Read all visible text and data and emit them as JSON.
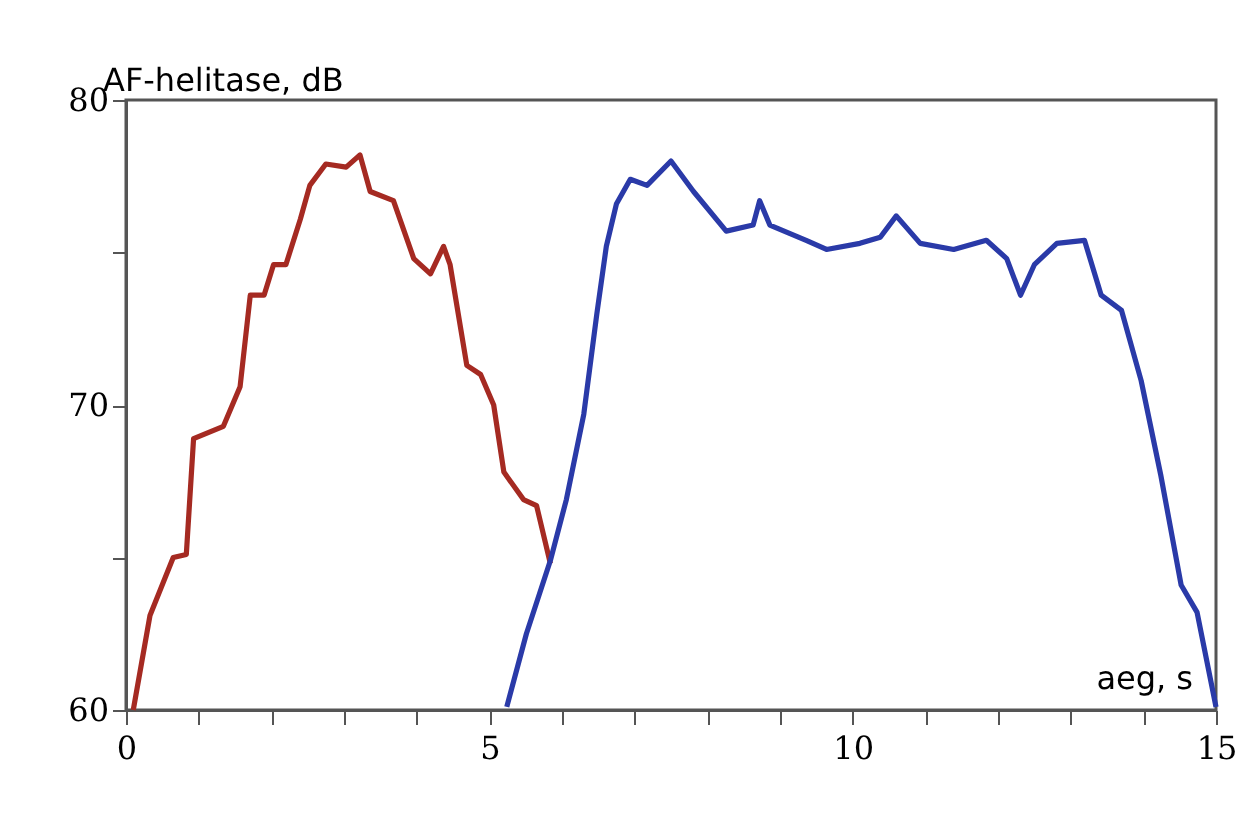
{
  "chart_data": {
    "type": "line",
    "ylabel": "AF-helitase, dB",
    "xlabel": "aeg, s",
    "xlim": [
      0,
      15
    ],
    "ylim": [
      60,
      80
    ],
    "xticks": [
      0,
      {
        "value": 1,
        "label": null
      },
      {
        "value": 2,
        "label": null
      },
      {
        "value": 3,
        "label": null
      },
      {
        "value": 4,
        "label": null
      },
      5,
      {
        "value": 6,
        "label": null
      },
      {
        "value": 7,
        "label": null
      },
      {
        "value": 8,
        "label": null
      },
      {
        "value": 9,
        "label": null
      },
      10,
      {
        "value": 11,
        "label": null
      },
      {
        "value": 12,
        "label": null
      },
      {
        "value": 13,
        "label": null
      },
      {
        "value": 14,
        "label": null
      },
      15
    ],
    "yticks": [
      60,
      {
        "value": 65,
        "label": null
      },
      70,
      {
        "value": 75,
        "label": null
      },
      80
    ],
    "grid": false,
    "legend": false,
    "marker": "none",
    "line_style": "solid",
    "series": [
      {
        "color": "#a52a22",
        "x": [
          0.1,
          0.33,
          0.65,
          0.83,
          0.93,
          1.34,
          1.57,
          1.71,
          1.9,
          2.03,
          2.2,
          2.4,
          2.53,
          2.75,
          3.03,
          3.22,
          3.36,
          3.68,
          3.96,
          4.19,
          4.37,
          4.46,
          4.69,
          4.88,
          5.06,
          5.2,
          5.47,
          5.65,
          5.84
        ],
        "values": [
          60,
          63.1,
          65,
          65.1,
          68.9,
          69.3,
          70.6,
          73.6,
          73.6,
          74.6,
          74.6,
          76.1,
          77.2,
          77.9,
          77.8,
          78.2,
          77.0,
          76.7,
          74.8,
          74.3,
          75.2,
          74.6,
          71.3,
          71.0,
          70.0,
          67.8,
          66.9,
          66.7,
          64.8
        ]
      },
      {
        "color": "#2a3aa8",
        "x": [
          5.24,
          5.51,
          5.84,
          6.06,
          6.3,
          6.48,
          6.61,
          6.75,
          6.94,
          7.17,
          7.5,
          7.81,
          8.26,
          8.63,
          8.72,
          8.86,
          9.36,
          9.64,
          10.1,
          10.38,
          10.6,
          10.93,
          11.39,
          11.84,
          12.12,
          12.31,
          12.5,
          12.81,
          13.19,
          13.42,
          13.7,
          13.97,
          14.24,
          14.52,
          14.74,
          15.0
        ],
        "values": [
          60.1,
          62.5,
          64.9,
          66.9,
          69.7,
          73.0,
          75.2,
          76.6,
          77.4,
          77.2,
          78.0,
          77.0,
          75.7,
          75.9,
          76.7,
          75.9,
          75.4,
          75.1,
          75.3,
          75.5,
          76.2,
          75.3,
          75.1,
          75.4,
          74.8,
          73.6,
          74.6,
          75.3,
          75.4,
          73.6,
          73.1,
          70.8,
          67.7,
          64.1,
          63.2,
          60.1
        ]
      }
    ]
  }
}
